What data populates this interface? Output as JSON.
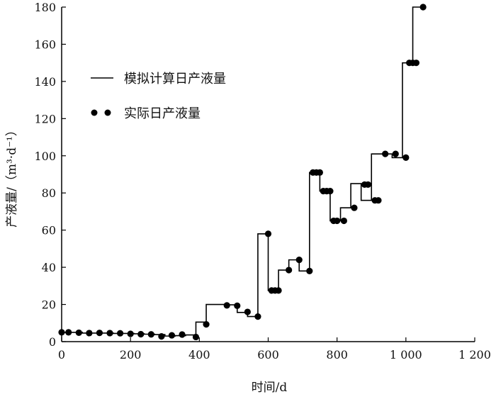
{
  "chart_data": {
    "type": "line",
    "title": "",
    "xlabel": "时间/d",
    "ylabel": "产液量/（m³·d⁻¹）",
    "xlim": [
      0,
      1200
    ],
    "ylim": [
      0,
      180
    ],
    "x_ticks": [
      0,
      200,
      400,
      600,
      800,
      1000,
      1200
    ],
    "x_tick_labels": [
      "0",
      "200",
      "400",
      "600",
      "800",
      "1 000",
      "1 200"
    ],
    "y_ticks": [
      0,
      20,
      40,
      60,
      80,
      100,
      120,
      140,
      160,
      180
    ],
    "y_tick_labels": [
      "0",
      "20",
      "40",
      "60",
      "80",
      "100",
      "120",
      "140",
      "160",
      "180"
    ],
    "grid": false,
    "legend_position": "upper-left",
    "series": [
      {
        "name": "模拟计算日产液量",
        "style": "step-line",
        "color": "#000000",
        "x": [
          0,
          30,
          60,
          90,
          120,
          150,
          180,
          210,
          240,
          270,
          300,
          330,
          360,
          390,
          420,
          450,
          480,
          510,
          540,
          570,
          600,
          630,
          660,
          690,
          720,
          750,
          780,
          810,
          840,
          870,
          900,
          930,
          960,
          990,
          1020,
          1050
        ],
        "y": [
          5,
          5,
          4.6,
          4.6,
          4.6,
          4.4,
          4.4,
          4.2,
          4,
          3.8,
          3,
          3.2,
          3.6,
          10.5,
          20,
          20,
          19.8,
          15.7,
          13.5,
          58,
          27.5,
          38.5,
          44,
          38,
          91,
          81,
          65,
          72,
          85,
          76,
          101,
          101,
          99,
          150,
          180,
          180
        ]
      },
      {
        "name": "实际日产液量",
        "style": "markers",
        "color": "#000000",
        "x": [
          0,
          20,
          50,
          80,
          110,
          140,
          170,
          200,
          230,
          260,
          290,
          320,
          350,
          390,
          420,
          480,
          510,
          540,
          570,
          600,
          610,
          620,
          630,
          660,
          690,
          720,
          730,
          740,
          750,
          760,
          770,
          780,
          790,
          800,
          820,
          850,
          880,
          890,
          910,
          920,
          940,
          970,
          1000,
          1010,
          1020,
          1030,
          1050
        ],
        "y": [
          5,
          5,
          4.8,
          4.6,
          4.7,
          4.6,
          4.5,
          4.2,
          4,
          3.9,
          2.8,
          3.4,
          3.8,
          2.5,
          9.3,
          19.5,
          19.3,
          16,
          13.5,
          58,
          27.5,
          27.5,
          27.5,
          38.5,
          44,
          38,
          91,
          91,
          91,
          81,
          81,
          81,
          65,
          65,
          65,
          72,
          84.5,
          84.5,
          76,
          76,
          101,
          101,
          99,
          150,
          150,
          150,
          180
        ]
      }
    ]
  },
  "legend": [
    {
      "label": "模拟计算日产液量",
      "symbol": "line"
    },
    {
      "label": "实际日产液量",
      "symbol": "dots"
    }
  ]
}
